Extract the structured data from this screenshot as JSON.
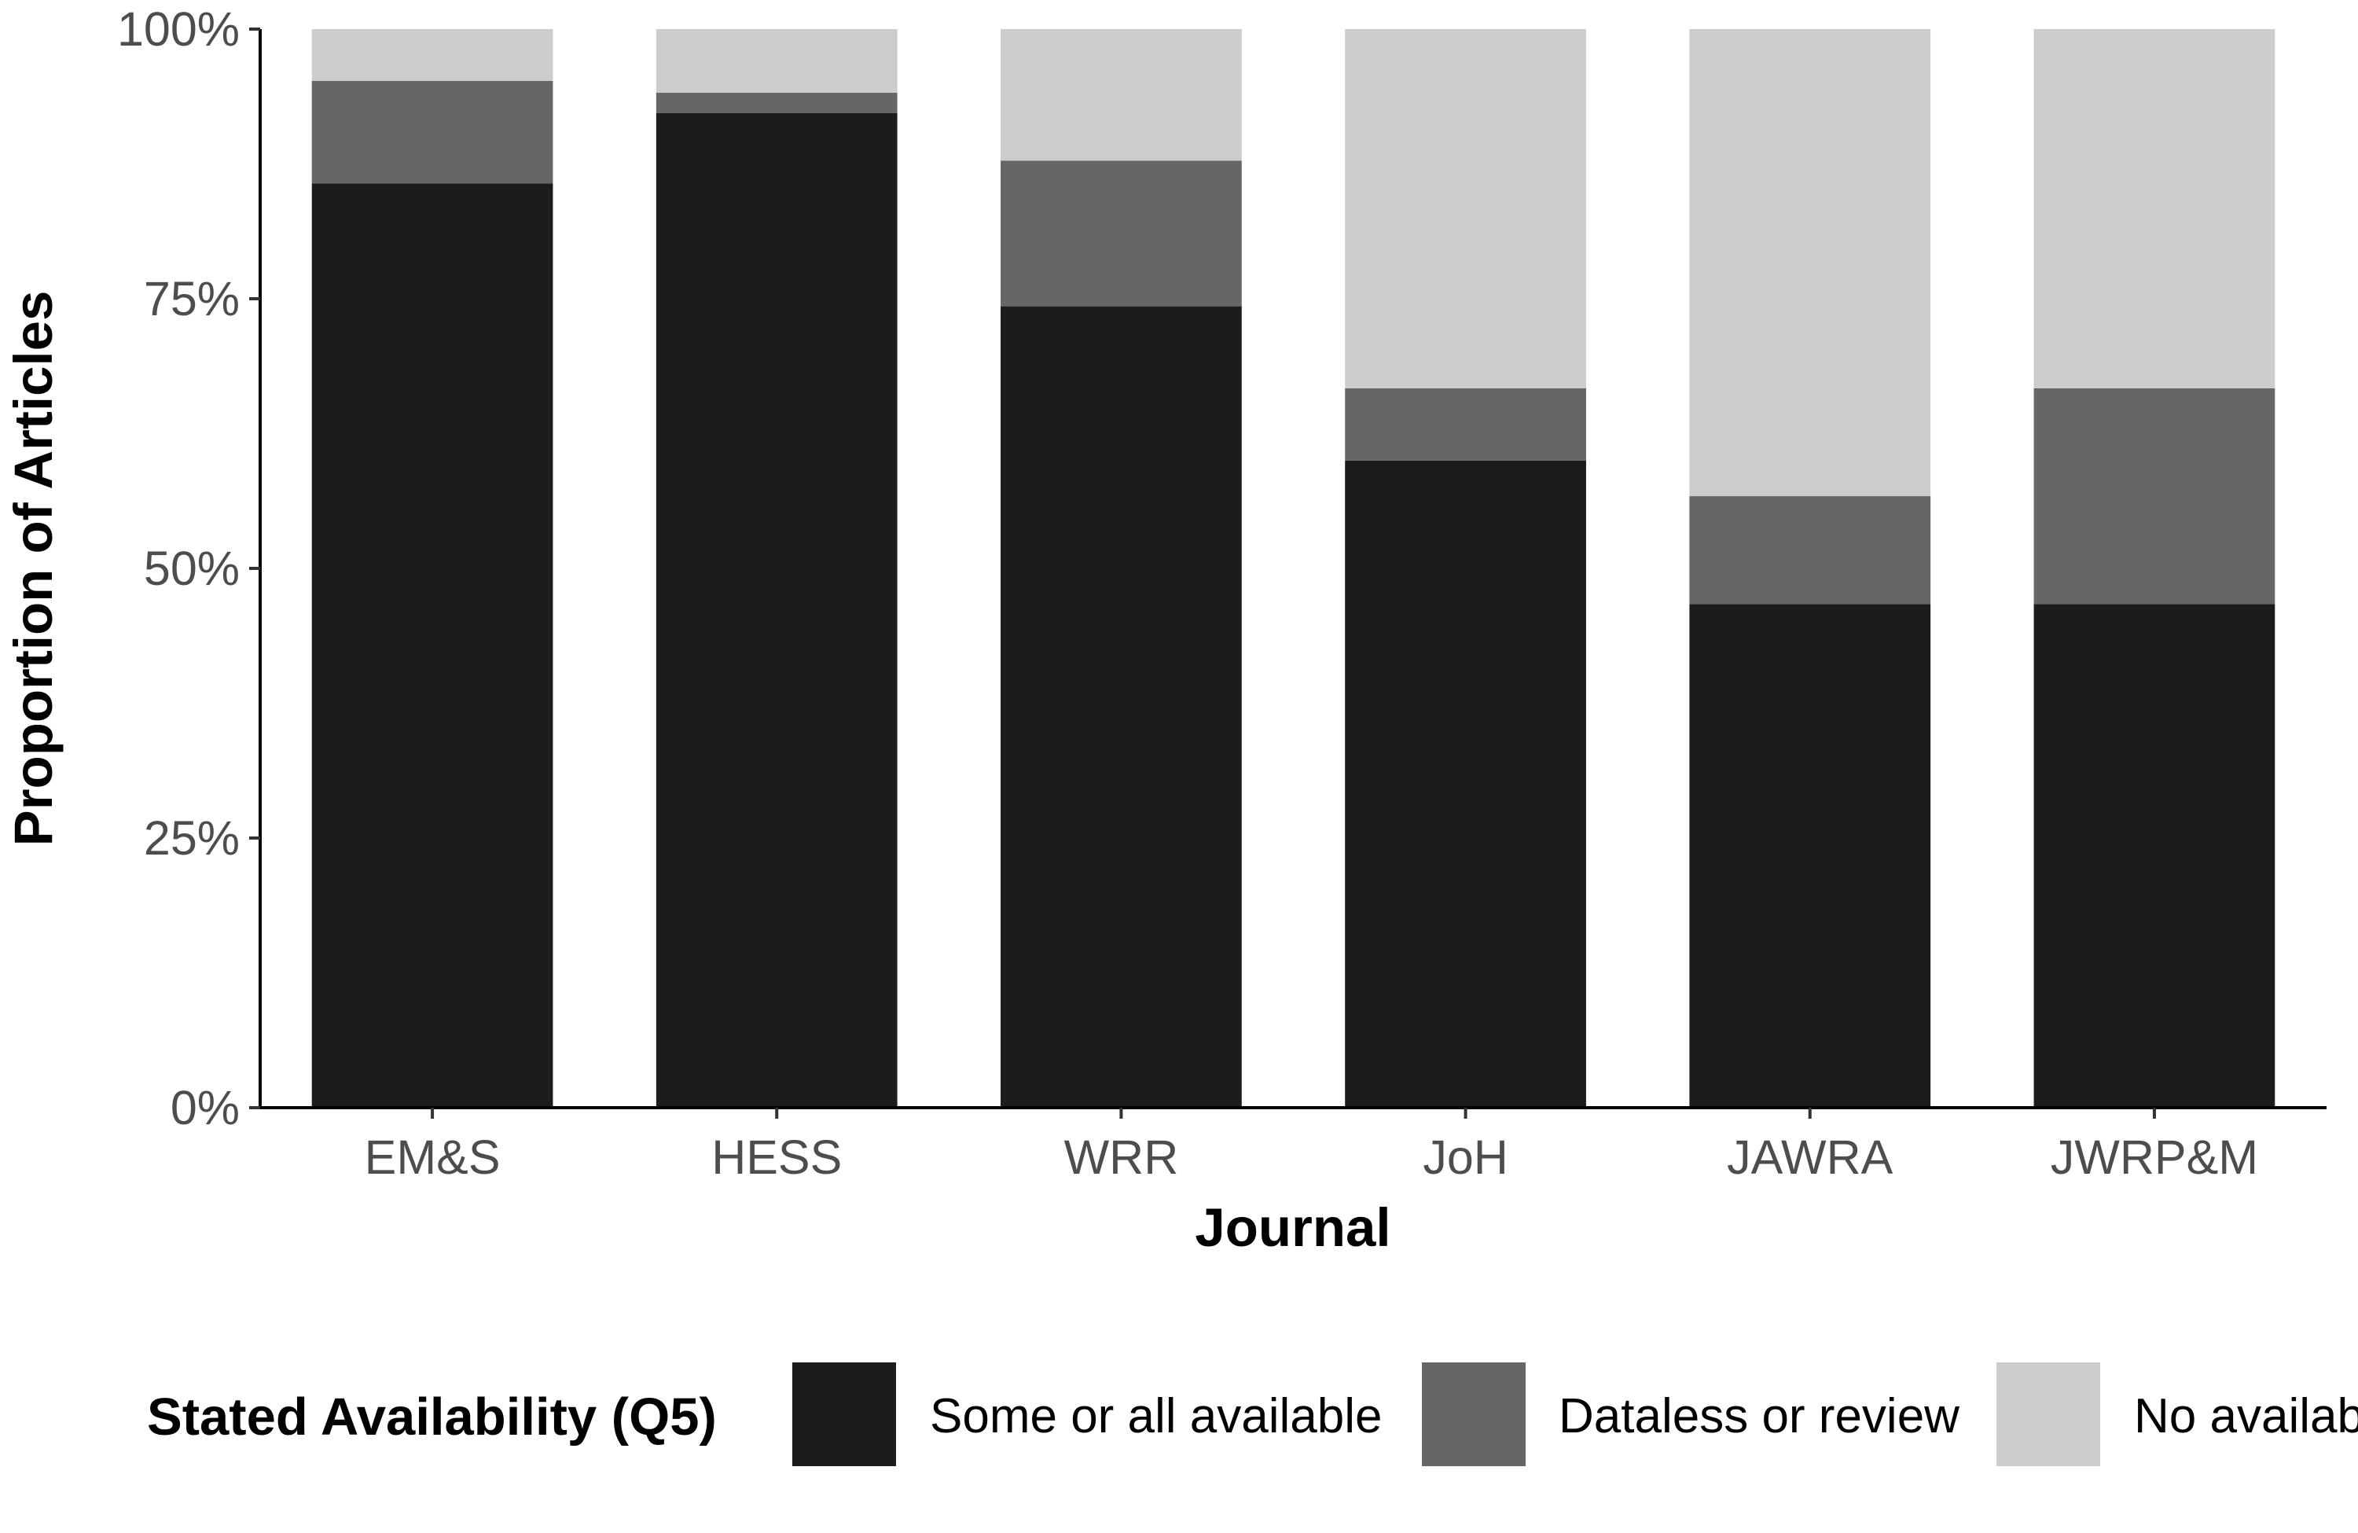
{
  "chart_data": {
    "type": "bar",
    "stacked": true,
    "xlabel": "Journal",
    "ylabel": "Proportion of Articles",
    "ylim": [
      0,
      1
    ],
    "y_ticks": [
      "0%",
      "25%",
      "50%",
      "75%",
      "100%"
    ],
    "categories": [
      "EM&S",
      "HESS",
      "WRR",
      "JoH",
      "JAWRA",
      "JWRP&M"
    ],
    "series": [
      {
        "name": "Some or all available",
        "color": "#1c1c1c",
        "values": [
          0.857,
          0.922,
          0.743,
          0.6,
          0.467,
          0.467
        ]
      },
      {
        "name": "Dataless or review",
        "color": "#666666",
        "values": [
          0.095,
          0.019,
          0.135,
          0.067,
          0.1,
          0.2
        ]
      },
      {
        "name": "No availability",
        "color": "#cccccc",
        "values": [
          0.048,
          0.059,
          0.122,
          0.333,
          0.433,
          0.333
        ]
      }
    ],
    "grid": false,
    "legend": {
      "title": "Stated Availability (Q5)",
      "position": "bottom"
    }
  }
}
